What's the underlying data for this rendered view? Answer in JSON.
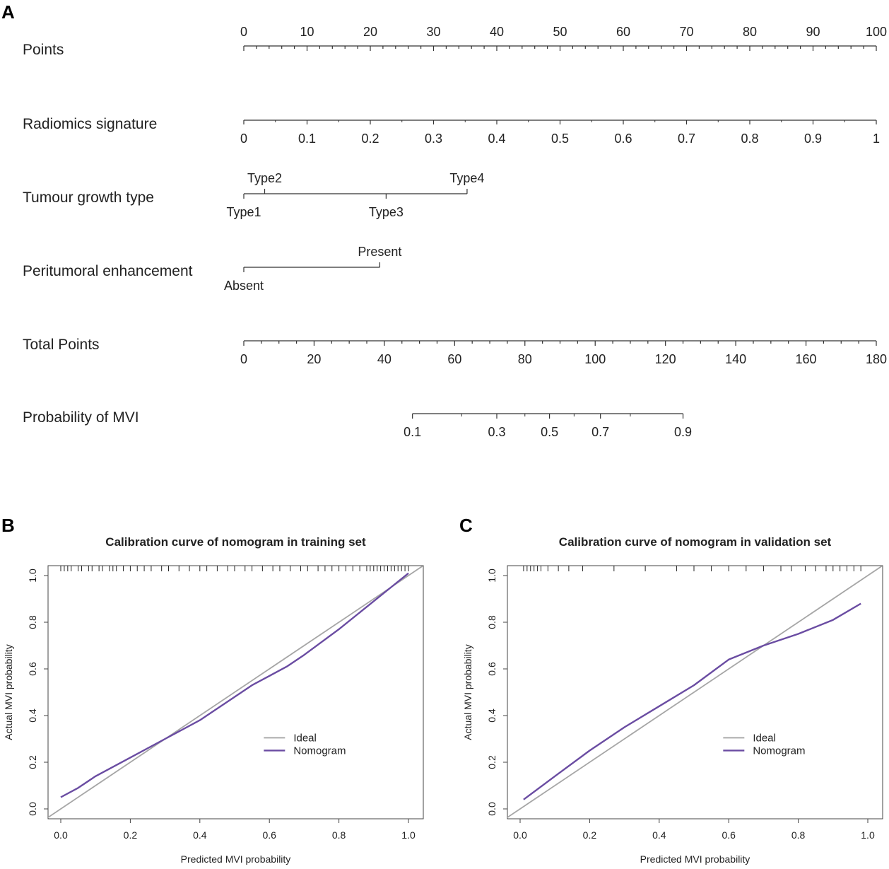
{
  "panel_a": {
    "letter": "A",
    "scales": [
      {
        "label": "Points",
        "ticks": [
          "0",
          "10",
          "20",
          "30",
          "40",
          "50",
          "60",
          "70",
          "80",
          "90",
          "100"
        ],
        "tick_values": [
          0,
          10,
          20,
          30,
          40,
          50,
          60,
          70,
          80,
          90,
          100
        ]
      },
      {
        "label": "Radiomics  signature",
        "ticks": [
          "0",
          "0.1",
          "0.2",
          "0.3",
          "0.4",
          "0.5",
          "0.6",
          "0.7",
          "0.8",
          "0.9",
          "1"
        ],
        "tick_values": [
          0,
          0.1,
          0.2,
          0.3,
          0.4,
          0.5,
          0.6,
          0.7,
          0.8,
          0.9,
          1
        ]
      },
      {
        "label": "Tumour  growth  type",
        "categories": [
          "Type1",
          "Type2",
          "Type3",
          "Type4"
        ],
        "points": [
          0,
          3.3,
          22.5,
          35.3
        ]
      },
      {
        "label": "Peritumoral  enhancement",
        "categories": [
          "Absent",
          "Present"
        ],
        "points": [
          0,
          21.5
        ]
      },
      {
        "label": "Total Points",
        "ticks": [
          "0",
          "20",
          "40",
          "60",
          "80",
          "100",
          "120",
          "140",
          "160",
          "180"
        ],
        "tick_values": [
          0,
          20,
          40,
          60,
          80,
          100,
          120,
          140,
          160,
          180
        ]
      },
      {
        "label": "Probability of MVI",
        "ticks": [
          "0.1",
          "0.3",
          "0.5",
          "0.7",
          "0.9"
        ],
        "total_points": [
          48,
          72,
          87,
          101.5,
          125
        ]
      }
    ]
  },
  "chart_data": [
    {
      "type": "line",
      "panel": "B",
      "title": "Calibration curve of nomogram in training set",
      "xlabel": "Predicted MVI probability",
      "ylabel": "Actual MVI probability",
      "xlim": [
        0,
        1
      ],
      "ylim": [
        0,
        1
      ],
      "x_ticks": [
        "0.0",
        "0.2",
        "0.4",
        "0.6",
        "0.8",
        "1.0"
      ],
      "y_ticks": [
        "0.0",
        "0.2",
        "0.4",
        "0.6",
        "0.8",
        "1.0"
      ],
      "legend": {
        "position": "center-right",
        "entries": [
          "Ideal",
          "Nomogram"
        ]
      },
      "series": [
        {
          "name": "Ideal",
          "color": "#a6a6a6",
          "x": [
            -0.04,
            1.04
          ],
          "y": [
            -0.04,
            1.04
          ]
        },
        {
          "name": "Nomogram",
          "color": "#6a4ca2",
          "x": [
            0.0,
            0.05,
            0.1,
            0.2,
            0.3,
            0.4,
            0.5,
            0.55,
            0.6,
            0.65,
            0.7,
            0.8,
            0.9,
            0.95,
            1.0
          ],
          "y": [
            0.05,
            0.09,
            0.14,
            0.22,
            0.3,
            0.38,
            0.48,
            0.53,
            0.57,
            0.61,
            0.66,
            0.77,
            0.89,
            0.95,
            1.01
          ]
        }
      ],
      "rug": [
        0.0,
        0.01,
        0.02,
        0.03,
        0.05,
        0.06,
        0.08,
        0.09,
        0.11,
        0.12,
        0.14,
        0.15,
        0.16,
        0.18,
        0.2,
        0.22,
        0.24,
        0.26,
        0.29,
        0.31,
        0.34,
        0.37,
        0.4,
        0.42,
        0.45,
        0.48,
        0.5,
        0.53,
        0.55,
        0.58,
        0.61,
        0.63,
        0.66,
        0.69,
        0.71,
        0.74,
        0.76,
        0.78,
        0.8,
        0.82,
        0.84,
        0.86,
        0.88,
        0.89,
        0.9,
        0.91,
        0.92,
        0.93,
        0.94,
        0.95,
        0.96,
        0.97,
        0.98,
        0.99,
        1.0
      ]
    },
    {
      "type": "line",
      "panel": "C",
      "title": "Calibration curve of nomogram in validation set",
      "xlabel": "Predicted MVI probability",
      "ylabel": "Actual MVI probability",
      "xlim": [
        0,
        1
      ],
      "ylim": [
        0,
        1
      ],
      "x_ticks": [
        "0.0",
        "0.2",
        "0.4",
        "0.6",
        "0.8",
        "1.0"
      ],
      "y_ticks": [
        "0.0",
        "0.2",
        "0.4",
        "0.6",
        "0.8",
        "1.0"
      ],
      "legend": {
        "position": "center-right",
        "entries": [
          "Ideal",
          "Nomogram"
        ]
      },
      "series": [
        {
          "name": "Ideal",
          "color": "#a6a6a6",
          "x": [
            -0.04,
            1.04
          ],
          "y": [
            -0.04,
            1.04
          ]
        },
        {
          "name": "Nomogram",
          "color": "#6a4ca2",
          "x": [
            0.01,
            0.1,
            0.2,
            0.3,
            0.4,
            0.5,
            0.6,
            0.7,
            0.8,
            0.9,
            0.98
          ],
          "y": [
            0.04,
            0.14,
            0.25,
            0.35,
            0.44,
            0.53,
            0.64,
            0.7,
            0.75,
            0.81,
            0.88
          ]
        }
      ],
      "rug": [
        0.01,
        0.02,
        0.03,
        0.04,
        0.05,
        0.06,
        0.08,
        0.11,
        0.14,
        0.18,
        0.27,
        0.36,
        0.45,
        0.5,
        0.55,
        0.6,
        0.65,
        0.7,
        0.75,
        0.78,
        0.82,
        0.85,
        0.88,
        0.9,
        0.92,
        0.94,
        0.96,
        0.98
      ]
    }
  ]
}
